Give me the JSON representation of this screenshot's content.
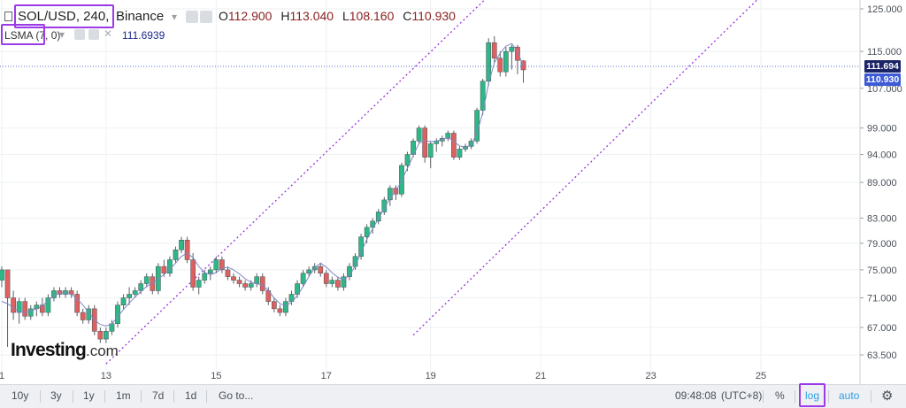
{
  "header": {
    "symbol": "SOL/USD, 240,",
    "exchange": "Binance",
    "ohlc": {
      "o_label": "O",
      "o": "112.900",
      "h_label": "H",
      "h": "113.040",
      "l_label": "L",
      "l": "108.160",
      "c_label": "C",
      "c": "110.930"
    }
  },
  "indicator": {
    "label": "LSMA (7, 0)",
    "value": "111.6939"
  },
  "price_axis": {
    "last_price_tag": "111.694",
    "close_tag": "110.930"
  },
  "logo": {
    "text": "Investing",
    "suffix": ".com"
  },
  "toolbar": {
    "ranges": [
      "10y",
      "3y",
      "1y",
      "1m",
      "7d",
      "1d"
    ],
    "goto": "Go to...",
    "clock": "09:48:08",
    "timezone": "(UTC+8)",
    "percent": "%",
    "log": "log",
    "auto": "auto",
    "settings_icon": "gear-icon"
  },
  "colors": {
    "up": "#2eb787",
    "down": "#e0605f",
    "lsma": "#7e86c4",
    "trend": "#9a32e0",
    "highlight": "#9b3ae6",
    "toolbar_blue": "#2f9ee6"
  },
  "chart_data": {
    "type": "candlestick",
    "scale": "log",
    "y_ticks": [
      63.5,
      67.0,
      71.0,
      75.0,
      79.0,
      83.0,
      89.0,
      94.0,
      99.0,
      107.0,
      115.0,
      125.0
    ],
    "x_ticks": [
      {
        "label": "1",
        "index": 0
      },
      {
        "label": "13",
        "index": 18
      },
      {
        "label": "15",
        "index": 37
      },
      {
        "label": "17",
        "index": 56
      },
      {
        "label": "19",
        "index": 74
      },
      {
        "label": "21",
        "index": 93
      },
      {
        "label": "23",
        "index": 112
      },
      {
        "label": "25",
        "index": 131
      }
    ],
    "candles": [
      [
        73.5,
        75.5,
        72.5,
        75.0
      ],
      [
        75.0,
        75.0,
        64.5,
        71.0
      ],
      [
        71.0,
        72.0,
        68.0,
        69.0
      ],
      [
        69.0,
        71.0,
        67.5,
        70.5
      ],
      [
        70.5,
        71.0,
        68.0,
        68.5
      ],
      [
        68.5,
        70.0,
        68.0,
        69.5
      ],
      [
        69.5,
        70.5,
        68.5,
        70.0
      ],
      [
        70.0,
        71.0,
        68.5,
        69.0
      ],
      [
        69.0,
        71.5,
        68.5,
        71.0
      ],
      [
        71.0,
        72.5,
        70.5,
        72.0
      ],
      [
        72.0,
        72.5,
        71.0,
        71.5
      ],
      [
        71.5,
        72.5,
        71.0,
        72.0
      ],
      [
        72.0,
        72.5,
        71.0,
        71.5
      ],
      [
        71.5,
        72.0,
        68.5,
        69.0
      ],
      [
        69.0,
        69.5,
        67.5,
        68.0
      ],
      [
        68.0,
        70.0,
        67.5,
        69.5
      ],
      [
        69.5,
        70.0,
        66.0,
        66.5
      ],
      [
        66.5,
        67.0,
        65.0,
        65.5
      ],
      [
        65.5,
        67.0,
        65.0,
        66.5
      ],
      [
        66.5,
        68.0,
        66.0,
        67.5
      ],
      [
        67.5,
        70.5,
        67.0,
        70.0
      ],
      [
        70.0,
        71.5,
        69.5,
        71.0
      ],
      [
        71.0,
        72.5,
        70.0,
        71.5
      ],
      [
        71.5,
        72.5,
        71.0,
        72.0
      ],
      [
        72.0,
        73.5,
        71.5,
        73.0
      ],
      [
        73.0,
        74.5,
        72.5,
        74.0
      ],
      [
        74.0,
        74.5,
        71.5,
        72.0
      ],
      [
        72.0,
        76.0,
        71.5,
        75.5
      ],
      [
        75.5,
        76.5,
        74.0,
        74.5
      ],
      [
        74.5,
        77.0,
        74.0,
        76.5
      ],
      [
        76.5,
        78.5,
        76.0,
        78.0
      ],
      [
        78.0,
        80.0,
        77.5,
        79.5
      ],
      [
        79.5,
        80.0,
        76.0,
        76.5
      ],
      [
        76.5,
        77.5,
        72.0,
        72.5
      ],
      [
        72.5,
        74.0,
        71.5,
        73.5
      ],
      [
        73.5,
        75.0,
        73.0,
        74.5
      ],
      [
        74.5,
        75.5,
        73.5,
        75.0
      ],
      [
        75.0,
        77.0,
        74.5,
        76.5
      ],
      [
        76.5,
        77.0,
        74.5,
        75.0
      ],
      [
        75.0,
        75.5,
        73.5,
        74.0
      ],
      [
        74.0,
        74.5,
        73.0,
        73.5
      ],
      [
        73.5,
        74.0,
        72.5,
        73.0
      ],
      [
        73.0,
        73.5,
        72.0,
        72.5
      ],
      [
        72.5,
        73.5,
        72.0,
        73.0
      ],
      [
        73.0,
        74.5,
        72.5,
        74.0
      ],
      [
        74.0,
        74.5,
        71.5,
        72.0
      ],
      [
        72.0,
        72.5,
        70.0,
        70.5
      ],
      [
        70.5,
        71.0,
        69.0,
        69.5
      ],
      [
        69.5,
        70.0,
        68.5,
        69.0
      ],
      [
        69.0,
        71.0,
        68.5,
        70.5
      ],
      [
        70.5,
        72.0,
        70.0,
        71.5
      ],
      [
        71.5,
        73.5,
        71.0,
        73.0
      ],
      [
        73.0,
        75.0,
        72.5,
        74.5
      ],
      [
        74.5,
        75.5,
        74.0,
        75.0
      ],
      [
        75.0,
        76.0,
        74.5,
        75.5
      ],
      [
        75.5,
        76.0,
        74.0,
        74.5
      ],
      [
        74.5,
        75.0,
        72.5,
        73.0
      ],
      [
        73.0,
        74.0,
        72.5,
        73.5
      ],
      [
        73.5,
        74.0,
        72.0,
        72.5
      ],
      [
        72.5,
        74.5,
        72.0,
        74.0
      ],
      [
        74.0,
        76.0,
        73.5,
        75.5
      ],
      [
        75.5,
        77.5,
        75.0,
        77.0
      ],
      [
        77.0,
        80.5,
        76.5,
        80.0
      ],
      [
        80.0,
        82.0,
        79.0,
        81.5
      ],
      [
        81.5,
        83.0,
        80.5,
        82.5
      ],
      [
        82.5,
        84.5,
        82.0,
        84.0
      ],
      [
        84.0,
        86.5,
        83.5,
        86.0
      ],
      [
        86.0,
        88.5,
        85.0,
        88.0
      ],
      [
        88.0,
        88.5,
        86.0,
        87.0
      ],
      [
        87.0,
        92.5,
        86.5,
        92.0
      ],
      [
        92.0,
        94.5,
        91.0,
        94.0
      ],
      [
        94.0,
        97.0,
        93.5,
        96.5
      ],
      [
        96.5,
        99.5,
        96.0,
        99.0
      ],
      [
        99.0,
        99.5,
        92.5,
        93.5
      ],
      [
        93.5,
        96.5,
        91.5,
        96.0
      ],
      [
        96.0,
        97.0,
        94.5,
        96.5
      ],
      [
        96.5,
        97.5,
        95.5,
        97.0
      ],
      [
        97.0,
        98.5,
        96.5,
        98.0
      ],
      [
        98.0,
        98.5,
        93.0,
        93.5
      ],
      [
        93.5,
        95.5,
        93.0,
        95.0
      ],
      [
        95.0,
        96.0,
        94.5,
        95.5
      ],
      [
        95.5,
        97.0,
        95.0,
        96.5
      ],
      [
        96.5,
        103.0,
        96.0,
        102.5
      ],
      [
        102.5,
        109.0,
        101.5,
        108.5
      ],
      [
        108.5,
        118.0,
        107.5,
        117.0
      ],
      [
        117.0,
        118.5,
        112.5,
        113.5
      ],
      [
        113.5,
        115.0,
        109.5,
        110.5
      ],
      [
        110.5,
        116.0,
        109.5,
        115.0
      ],
      [
        115.0,
        116.5,
        111.0,
        116.0
      ],
      [
        116.0,
        116.5,
        110.0,
        113.0
      ],
      [
        112.9,
        113.04,
        108.16,
        110.93
      ]
    ],
    "lsma": [
      70.5,
      70.2,
      69.6,
      69.1,
      69.0,
      69.2,
      69.5,
      69.9,
      70.6,
      71.3,
      71.6,
      71.7,
      71.5,
      70.9,
      70.0,
      69.0,
      68.0,
      67.4,
      67.2,
      67.5,
      68.4,
      69.4,
      70.3,
      71.1,
      71.9,
      72.6,
      73.1,
      73.7,
      74.3,
      75.1,
      76.0,
      77.0,
      77.5,
      76.8,
      75.5,
      74.6,
      74.3,
      74.6,
      75.2,
      75.4,
      75.0,
      74.4,
      73.7,
      73.2,
      73.0,
      72.8,
      72.0,
      71.0,
      70.2,
      69.9,
      70.4,
      71.3,
      72.6,
      74.0,
      75.3,
      76.0,
      75.4,
      74.6,
      73.9,
      73.6,
      74.2,
      75.6,
      77.6,
      79.6,
      81.3,
      82.9,
      84.6,
      86.3,
      87.5,
      89.3,
      91.5,
      93.8,
      96.1,
      96.6,
      96.4,
      96.5,
      96.8,
      97.2,
      96.4,
      95.6,
      95.3,
      95.8,
      98.0,
      102.0,
      108.0,
      112.5,
      114.6,
      116.2,
      116.8,
      115.0,
      111.7
    ],
    "trend_lines": [
      {
        "from": [
          18,
          62.4
        ],
        "to": [
          86,
          131
        ]
      },
      {
        "from": [
          71,
          66.0
        ],
        "to": [
          133,
          131
        ]
      }
    ]
  }
}
